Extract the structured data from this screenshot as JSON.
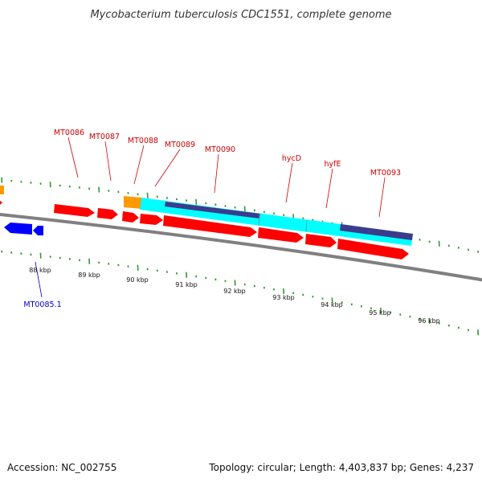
{
  "title": "Mycobacterium tuberculosis CDC1551, complete genome",
  "footer": {
    "accession": "Accession: NC_002755",
    "topology": "Topology: circular; Length: 4,403,837 bp; Genes: 4,237"
  },
  "colors": {
    "forward_gene": "#ff0000",
    "reverse_gene": "#0000ff",
    "operon_orange": "#ff9900",
    "operon_cyan": "#00ffff",
    "operon_purple": "#3c3c8c",
    "tick": "#339933",
    "backbone": "#808080",
    "forward_label": "#cc0000",
    "reverse_label": "#0000cc"
  },
  "scale_labels": [
    "88 kbp",
    "89 kbp",
    "90 kbp",
    "91 kbp",
    "92 kbp",
    "93 kbp",
    "94 kbp",
    "95 kbp",
    "96 kbp"
  ],
  "forward_genes": [
    {
      "label": "MT0086"
    },
    {
      "label": "MT0087"
    },
    {
      "label": "MT0088"
    },
    {
      "label": "MT0089"
    },
    {
      "label": "MT0090"
    },
    {
      "label": "hycD"
    },
    {
      "label": "hyfE"
    },
    {
      "label": "MT0093"
    }
  ],
  "reverse_genes": [
    {
      "label": "MT0085.1"
    }
  ]
}
